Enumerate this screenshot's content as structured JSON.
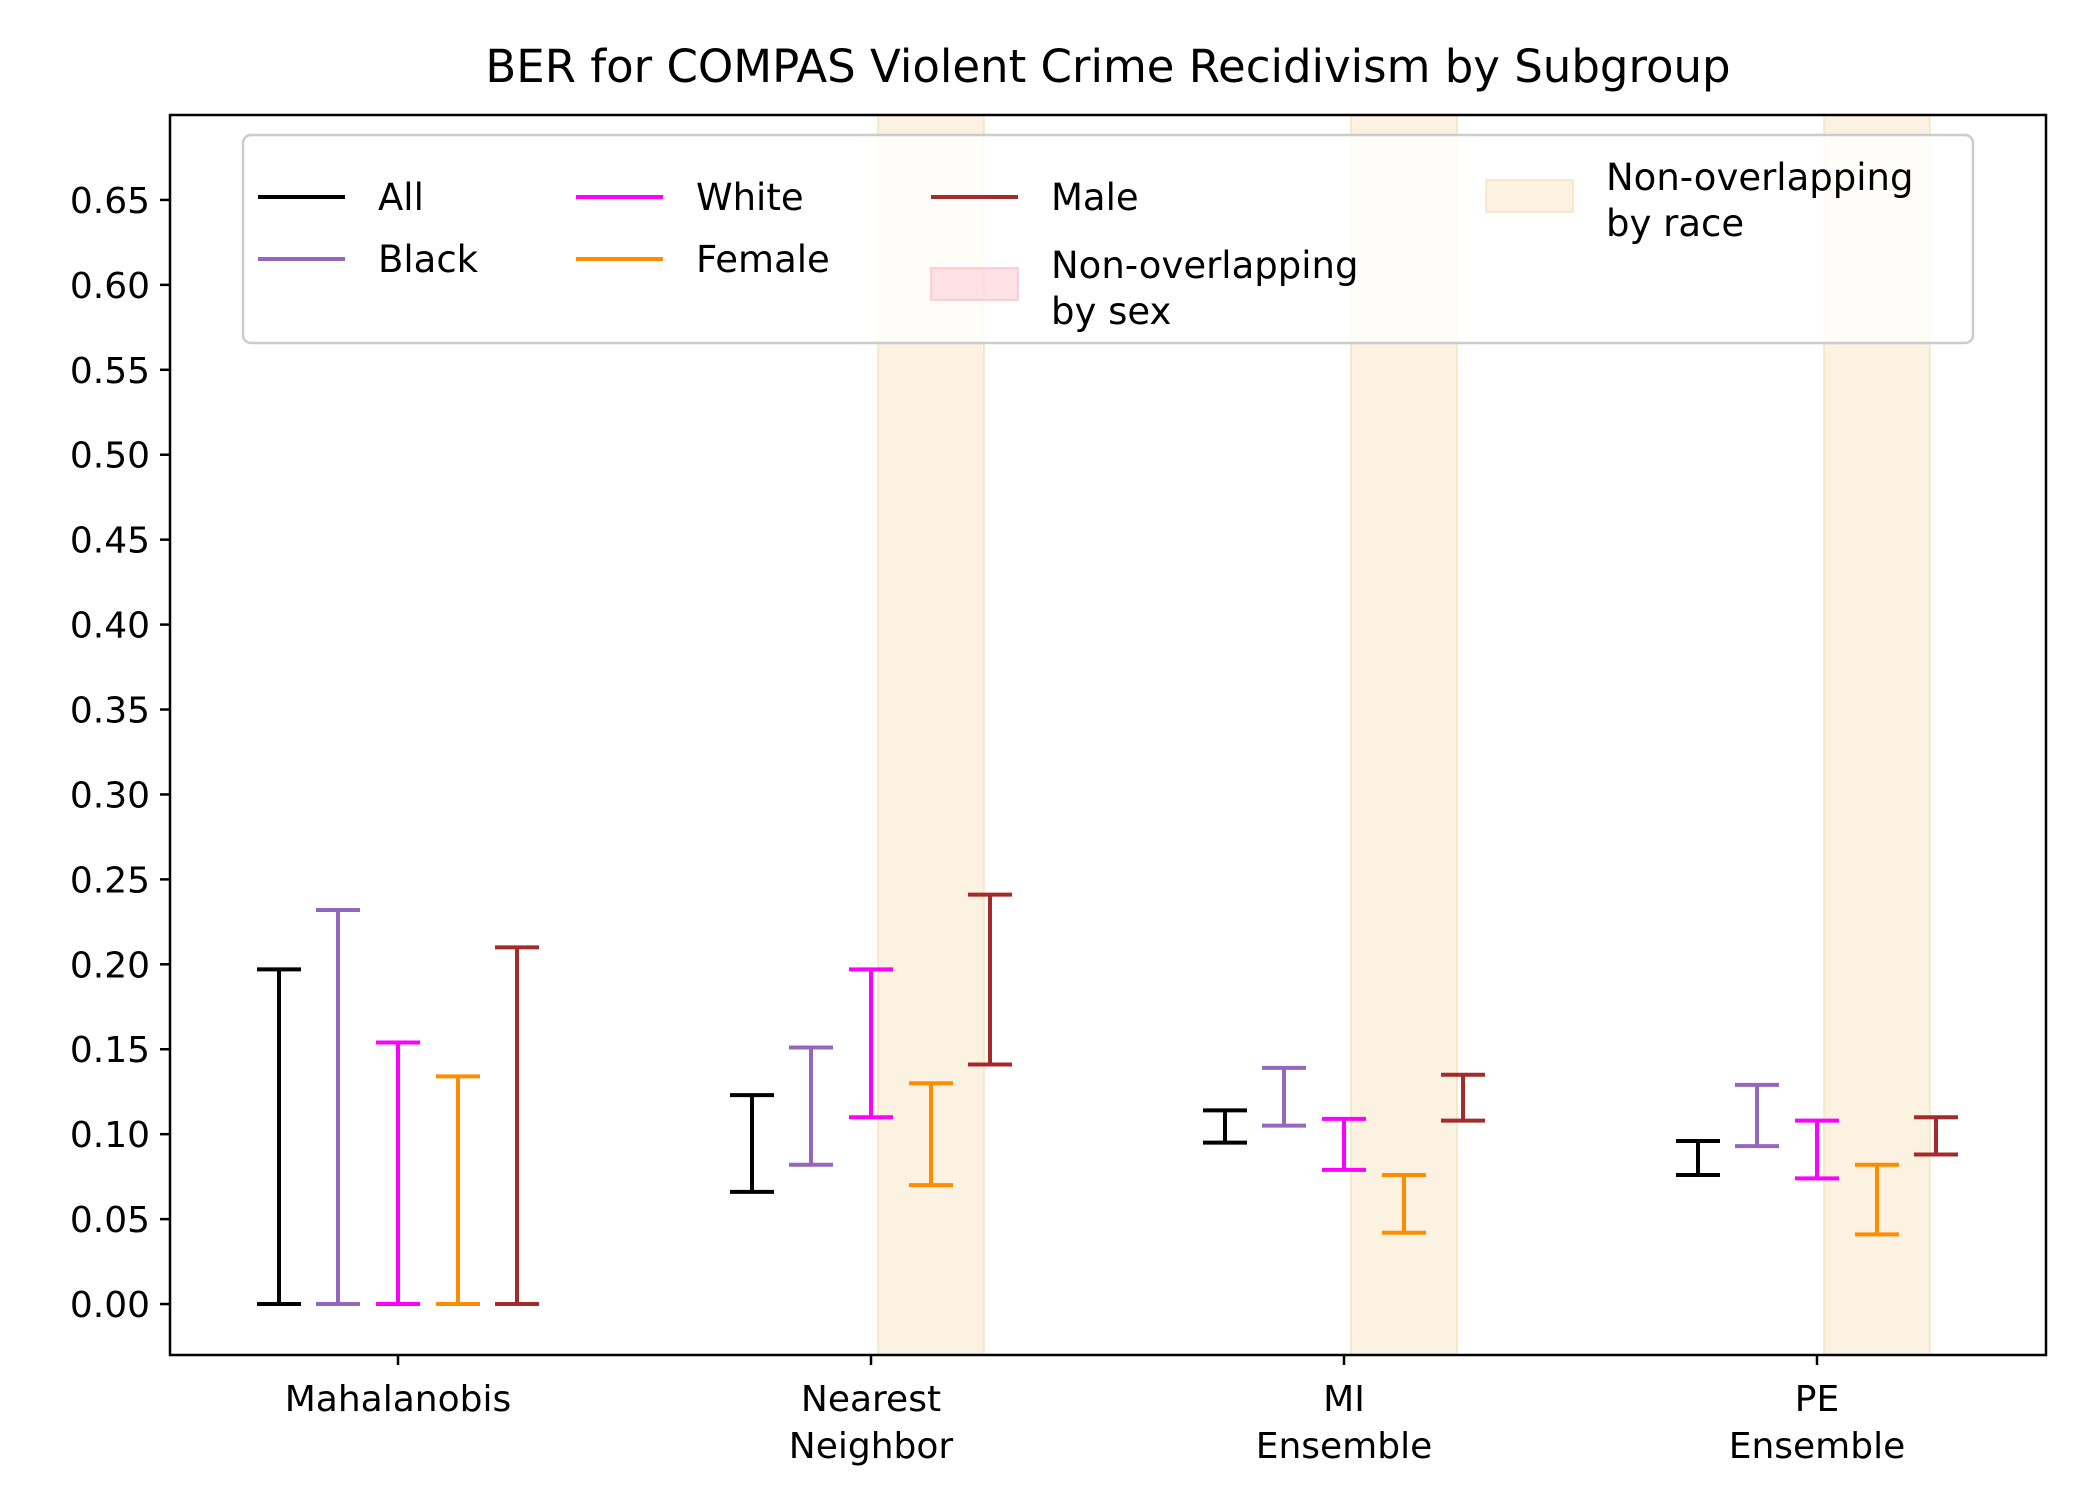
{
  "chart_data": {
    "type": "errorbar",
    "title": "BER for COMPAS Violent Crime Recidivism by Subgroup",
    "xlabel": "",
    "ylabel": "",
    "categories": [
      "Mahalanobis",
      "Nearest\nNeighbor",
      "MI\nEnsemble",
      "PE\nEnsemble"
    ],
    "ylim": [
      -0.03,
      0.7
    ],
    "yticks": [
      0.0,
      0.05,
      0.1,
      0.15,
      0.2,
      0.25,
      0.3,
      0.35,
      0.4,
      0.45,
      0.5,
      0.55,
      0.6,
      0.65
    ],
    "ytick_labels": [
      "0.00",
      "0.05",
      "0.10",
      "0.15",
      "0.20",
      "0.25",
      "0.30",
      "0.35",
      "0.40",
      "0.45",
      "0.50",
      "0.55",
      "0.60",
      "0.65"
    ],
    "grid": false,
    "legend_position": "top",
    "series": [
      {
        "name": "All",
        "color": "#000000",
        "intervals": [
          [
            0.0,
            0.197
          ],
          [
            0.066,
            0.123
          ],
          [
            0.095,
            0.114
          ],
          [
            0.076,
            0.096
          ]
        ]
      },
      {
        "name": "Black",
        "color": "#9467bd",
        "intervals": [
          [
            0.0,
            0.232
          ],
          [
            0.082,
            0.151
          ],
          [
            0.105,
            0.139
          ],
          [
            0.093,
            0.129
          ]
        ]
      },
      {
        "name": "White",
        "color": "#ff00ff",
        "intervals": [
          [
            0.0,
            0.154
          ],
          [
            0.11,
            0.197
          ],
          [
            0.079,
            0.109
          ],
          [
            0.074,
            0.108
          ]
        ]
      },
      {
        "name": "Female",
        "color": "#ff8c00",
        "intervals": [
          [
            0.0,
            0.134
          ],
          [
            0.07,
            0.13
          ],
          [
            0.042,
            0.076
          ],
          [
            0.041,
            0.082
          ]
        ]
      },
      {
        "name": "Male",
        "color": "#a52a2a",
        "intervals": [
          [
            0.0,
            0.21
          ],
          [
            0.141,
            0.241
          ],
          [
            0.108,
            0.135
          ],
          [
            0.088,
            0.11
          ]
        ]
      }
    ],
    "shaded_regions": [
      {
        "name": "Non-overlapping\nby sex",
        "color": "#ffb6c1",
        "categories": []
      },
      {
        "name": "Non-overlapping\nby race",
        "color": "#f5deb3",
        "categories": [
          "Nearest\nNeighbor",
          "MI\nEnsemble",
          "PE\nEnsemble"
        ]
      }
    ]
  }
}
